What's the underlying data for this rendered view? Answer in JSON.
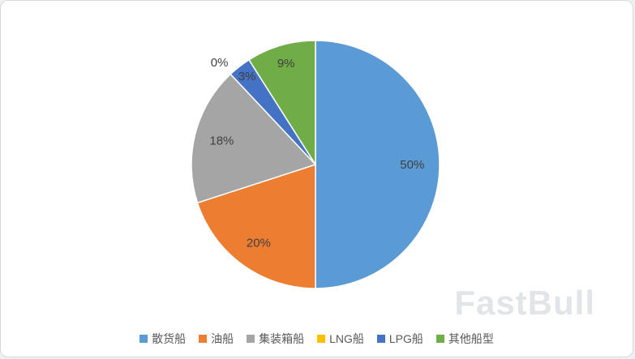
{
  "chart_data": {
    "type": "pie",
    "title": "",
    "categories": [
      "散货船",
      "油船",
      "集装箱船",
      "LNG船",
      "LPG船",
      "其他船型"
    ],
    "values": [
      50,
      20,
      18,
      0,
      3,
      9
    ],
    "labels": [
      "50%",
      "20%",
      "18%",
      "0%",
      "3%",
      "9%"
    ],
    "colors": [
      "#5B9BD5",
      "#ED7D31",
      "#A5A5A5",
      "#FFC000",
      "#4472C4",
      "#70AD47"
    ],
    "start_angle": 0,
    "direction": "clockwise",
    "legend_position": "bottom",
    "grid": false
  },
  "watermark": "FastBull"
}
